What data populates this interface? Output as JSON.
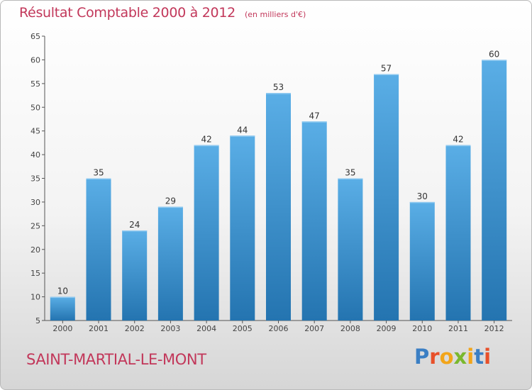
{
  "header": {
    "title": "Résultat Comptable 2000 à 2012",
    "subtitle": "(en milliers d'€)"
  },
  "footer": {
    "commune": "SAINT-MARTIAL-LE-MONT",
    "logo": "Proxiti"
  },
  "colors": {
    "accent": "#c2375a",
    "bar_top": "#5aaee6",
    "bar_bottom": "#2474b0",
    "axis": "#555555",
    "logo_letters": [
      "#3b7fc4",
      "#e8502a",
      "#f2a51a",
      "#7ab82e",
      "#f2a51a",
      "#3b7fc4",
      "#e8502a"
    ]
  },
  "chart_data": {
    "type": "bar",
    "categories": [
      "2000",
      "2001",
      "2002",
      "2003",
      "2004",
      "2005",
      "2006",
      "2007",
      "2008",
      "2009",
      "2010",
      "2011",
      "2012"
    ],
    "values": [
      10,
      35,
      24,
      29,
      42,
      44,
      53,
      47,
      35,
      57,
      30,
      42,
      60
    ],
    "title": "Résultat Comptable 2000 à 2012",
    "xlabel": "",
    "ylabel": "",
    "ylim": [
      5,
      65
    ],
    "yticks": [
      5,
      10,
      15,
      20,
      25,
      30,
      35,
      40,
      45,
      50,
      55,
      60,
      65
    ],
    "grid": false,
    "legend": "none",
    "data_labels": true
  }
}
